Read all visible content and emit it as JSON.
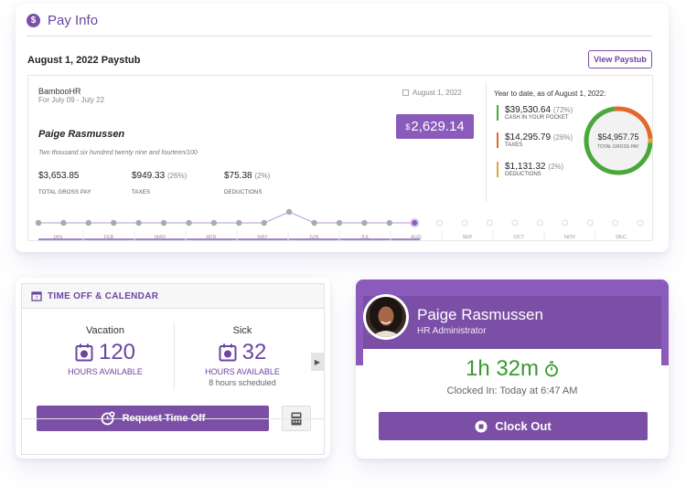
{
  "colors": {
    "brand_purple": "#7b4fa6",
    "cash": "#4aa83a",
    "taxes": "#e06a2e",
    "deductions": "#e8a23a",
    "clock_green": "#3a9a2f"
  },
  "pay_info": {
    "title": "Pay Info",
    "paystub_title": "August 1, 2022 Paystub",
    "view_button": "View Paystub",
    "stub": {
      "company": "BambooHR",
      "period": "For July 09 - July 22",
      "date": "August 1, 2022",
      "employee": "Paige Rasmussen",
      "net_pay_symbol": "$",
      "net_pay": "2,629.14",
      "amount_words": "Two thousand six hundred twenty nine and fourteen/100",
      "gross": {
        "value": "$3,653.85",
        "label": "TOTAL GROSS PAY"
      },
      "taxes": {
        "value": "$949.33",
        "pct": "(26%)",
        "label": "TAXES"
      },
      "deductions": {
        "value": "$75.38",
        "pct": "(2%)",
        "label": "DEDUCTIONS"
      }
    },
    "ytd": {
      "title": "Year to date, as of August 1, 2022:",
      "cash": {
        "value": "$39,530.64",
        "pct": "(72%)",
        "label": "CASH IN YOUR POCKET"
      },
      "taxes": {
        "value": "$14,295.79",
        "pct": "(26%)",
        "label": "TAXES"
      },
      "deductions": {
        "value": "$1,131.32",
        "pct": "(2%)",
        "label": "DEDUCTIONS"
      },
      "gross_total": "$54,957.75",
      "gross_label": "TOTAL GROSS PAY",
      "shares": {
        "cash": 72,
        "taxes": 26,
        "deductions": 2
      }
    },
    "timeline": {
      "months": [
        "JAN",
        "FEB",
        "MAR",
        "APR",
        "MAY",
        "JUN",
        "JUL",
        "AUG",
        "SEP",
        "OCT",
        "NOV",
        "DEC"
      ],
      "paystub_count": 25,
      "elevated_index": 10,
      "current_index": 15
    }
  },
  "time_off": {
    "title": "TIME OFF & CALENDAR",
    "vacation": {
      "type": "Vacation",
      "hours": "120",
      "label": "HOURS AVAILABLE"
    },
    "sick": {
      "type": "Sick",
      "hours": "32",
      "label": "HOURS AVAILABLE",
      "scheduled": "8 hours scheduled"
    },
    "request_button": "Request Time Off"
  },
  "clock": {
    "name": "Paige Rasmussen",
    "role": "HR Administrator",
    "elapsed": "1h 32m",
    "clocked_in": "Clocked In: Today at 6:47 AM",
    "button": "Clock Out"
  }
}
